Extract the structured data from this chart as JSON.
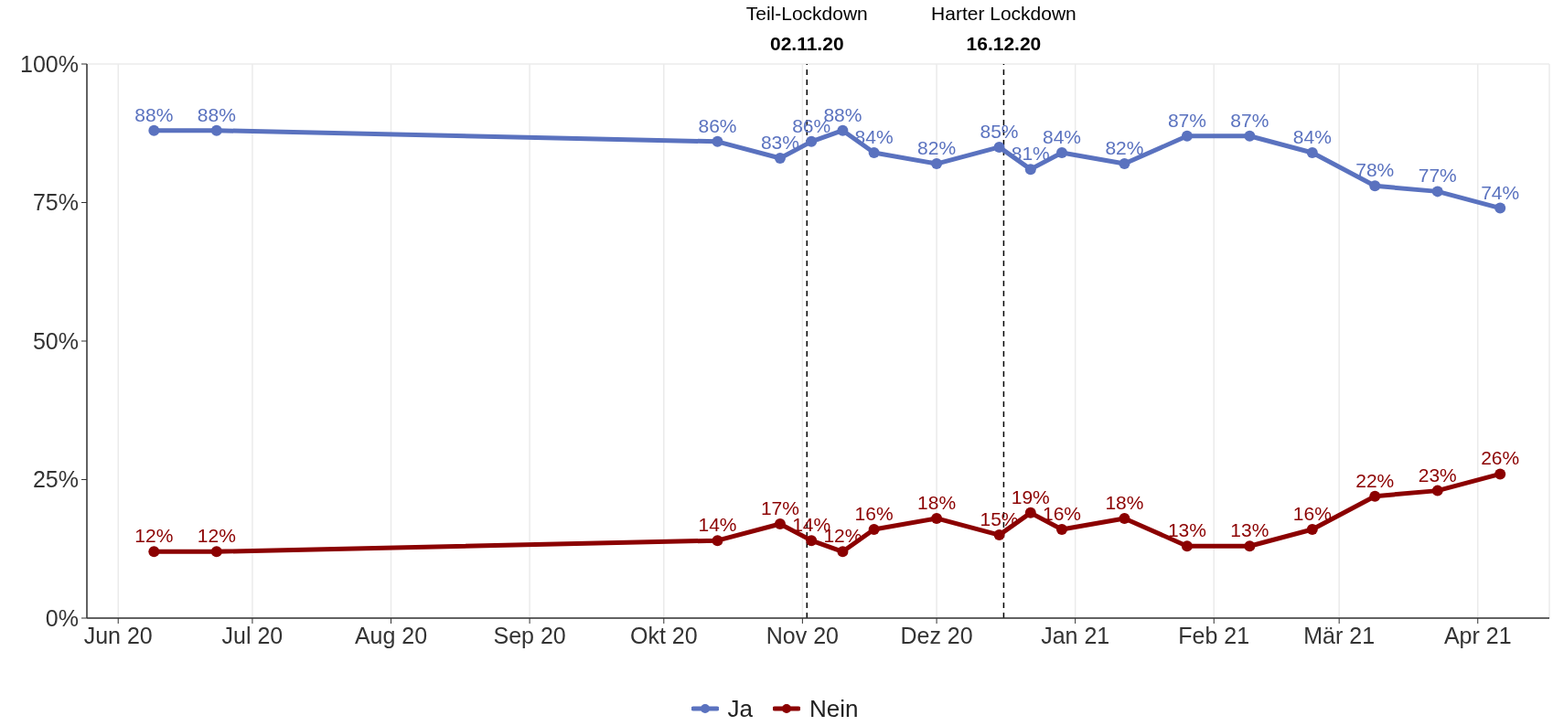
{
  "chart_data": {
    "type": "line",
    "x": [
      "2020-06-09",
      "2020-06-23",
      "2020-10-13",
      "2020-10-27",
      "2020-11-03",
      "2020-11-10",
      "2020-11-17",
      "2020-12-01",
      "2020-12-15",
      "2020-12-22",
      "2020-12-29",
      "2021-01-12",
      "2021-01-26",
      "2021-02-09",
      "2021-02-23",
      "2021-03-09",
      "2021-03-23",
      "2021-04-06"
    ],
    "series": [
      {
        "name": "Ja",
        "color": "#5a72bf",
        "values": [
          88,
          88,
          86,
          83,
          86,
          88,
          84,
          82,
          85,
          81,
          84,
          82,
          87,
          87,
          84,
          78,
          77,
          74
        ],
        "value_labels": [
          "88%",
          "88%",
          "86%",
          "83%",
          "86%",
          "88%",
          "84%",
          "82%",
          "85%",
          "81%",
          "84%",
          "82%",
          "87%",
          "87%",
          "84%",
          "78%",
          "77%",
          "74%"
        ]
      },
      {
        "name": "Nein",
        "color": "#8b0000",
        "values": [
          12,
          12,
          14,
          17,
          14,
          12,
          16,
          18,
          15,
          19,
          16,
          18,
          13,
          13,
          16,
          22,
          23,
          26
        ],
        "value_labels": [
          "12%",
          "12%",
          "14%",
          "17%",
          "14%",
          "12%",
          "16%",
          "18%",
          "15%",
          "19%",
          "16%",
          "18%",
          "13%",
          "13%",
          "16%",
          "22%",
          "23%",
          "26%"
        ]
      }
    ],
    "xlim": [
      "2020-05-25",
      "2021-04-17"
    ],
    "xticks": [
      {
        "value": "2020-06-01",
        "label": "Jun 20"
      },
      {
        "value": "2020-07-01",
        "label": "Jul 20"
      },
      {
        "value": "2020-08-01",
        "label": "Aug 20"
      },
      {
        "value": "2020-09-01",
        "label": "Sep 20"
      },
      {
        "value": "2020-10-01",
        "label": "Okt 20"
      },
      {
        "value": "2020-11-01",
        "label": "Nov 20"
      },
      {
        "value": "2020-12-01",
        "label": "Dez 20"
      },
      {
        "value": "2021-01-01",
        "label": "Jan 21"
      },
      {
        "value": "2021-02-01",
        "label": "Feb 21"
      },
      {
        "value": "2021-03-01",
        "label": "Mär 21"
      },
      {
        "value": "2021-04-01",
        "label": "Apr 21"
      }
    ],
    "ylim": [
      0,
      100
    ],
    "yticks": [
      {
        "value": 0,
        "label": "0%"
      },
      {
        "value": 25,
        "label": "25%"
      },
      {
        "value": 50,
        "label": "50%"
      },
      {
        "value": 75,
        "label": "75%"
      },
      {
        "value": 100,
        "label": "100%"
      }
    ],
    "ref_lines": [
      {
        "axis": "x",
        "value": "2020-11-02",
        "label": "Teil-Lockdown\n02.11.20",
        "color": "#000000",
        "line_style": "dashed"
      },
      {
        "axis": "x",
        "value": "2020-12-16",
        "label": "Harter Lockdown\n16.12.20",
        "color": "#000000",
        "line_style": "dashed"
      }
    ],
    "grid": true,
    "legend": "bottom",
    "marker": "circle",
    "line_style": "solid"
  }
}
